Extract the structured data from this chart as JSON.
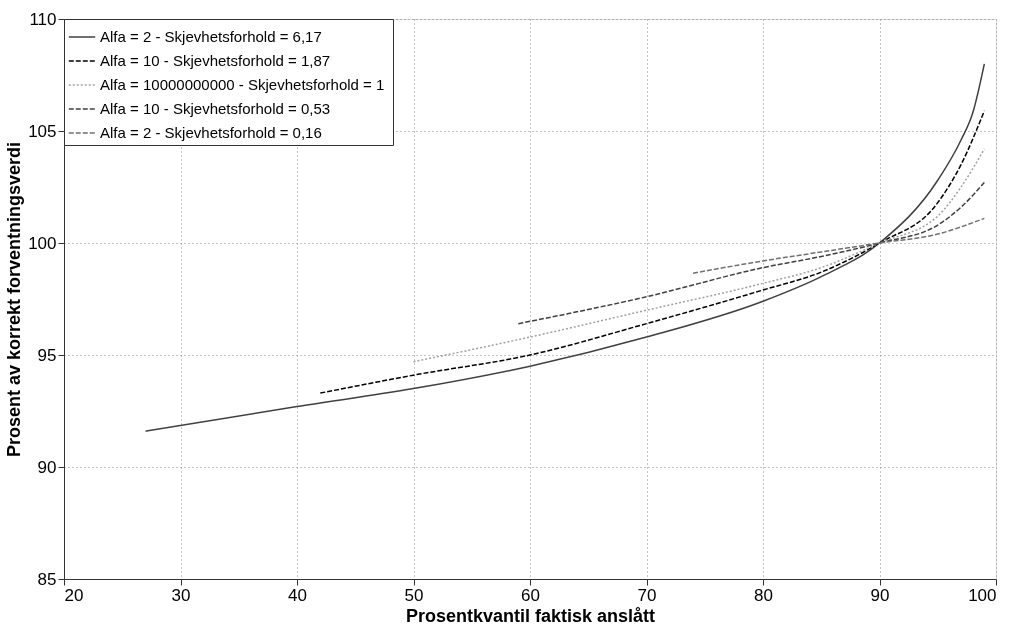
{
  "chart_data": {
    "type": "line",
    "xlabel": "Prosentkvantil faktisk anslått",
    "ylabel": "Prosent av korrekt forventningsverdi",
    "xlim": [
      20,
      100
    ],
    "xticks": [
      20,
      30,
      40,
      50,
      60,
      70,
      80,
      90,
      100
    ],
    "ylim": [
      85,
      110
    ],
    "yticks": [
      85,
      90,
      95,
      100,
      105,
      110
    ],
    "grid": true,
    "legend": "top left",
    "marker": "none",
    "series": [
      {
        "name": "Alfa =  2 - Skjevhetsforhold = 6,17",
        "color": "#404040",
        "line_style": "solid",
        "x": [
          27,
          40,
          50,
          60,
          70,
          80,
          85,
          90,
          95,
          97,
          98,
          99
        ],
        "values": [
          91.6,
          92.7,
          93.5,
          94.5,
          95.8,
          97.4,
          98.5,
          100,
          102.8,
          104.6,
          105.8,
          108
        ]
      },
      {
        "name": "Alfa =  10 - Skjevhetsforhold = 1,87",
        "color": "#000000",
        "line_style": "dashed",
        "x": [
          42,
          50,
          60,
          70,
          80,
          85,
          90,
          95,
          97,
          99
        ],
        "values": [
          93.3,
          94.1,
          95.0,
          96.4,
          97.9,
          98.7,
          100,
          101.8,
          103.5,
          105.9
        ]
      },
      {
        "name": "Alfa =  10000000000 - Skjevhetsforhold = 1",
        "color": "#a0a0a0",
        "line_style": "dotted",
        "x": [
          50,
          60,
          70,
          80,
          85,
          90,
          95,
          97,
          99
        ],
        "values": [
          94.7,
          95.8,
          97.0,
          98.2,
          98.9,
          100,
          101.2,
          102.5,
          104.2
        ]
      },
      {
        "name": "Alfa =  10 - Skjevhetsforhold = 0,53",
        "color": "#404040",
        "line_style": "dashed",
        "x": [
          59,
          70,
          80,
          85,
          90,
          95,
          97,
          99
        ],
        "values": [
          96.4,
          97.6,
          98.9,
          99.4,
          100,
          100.8,
          101.6,
          102.7
        ]
      },
      {
        "name": "Alfa =  2 - Skjevhetsforhold = 0,16",
        "color": "#707070",
        "line_style": "dashed",
        "x": [
          74,
          80,
          85,
          90,
          95,
          99
        ],
        "values": [
          98.65,
          99.2,
          99.6,
          100,
          100.4,
          101.1
        ]
      }
    ]
  }
}
